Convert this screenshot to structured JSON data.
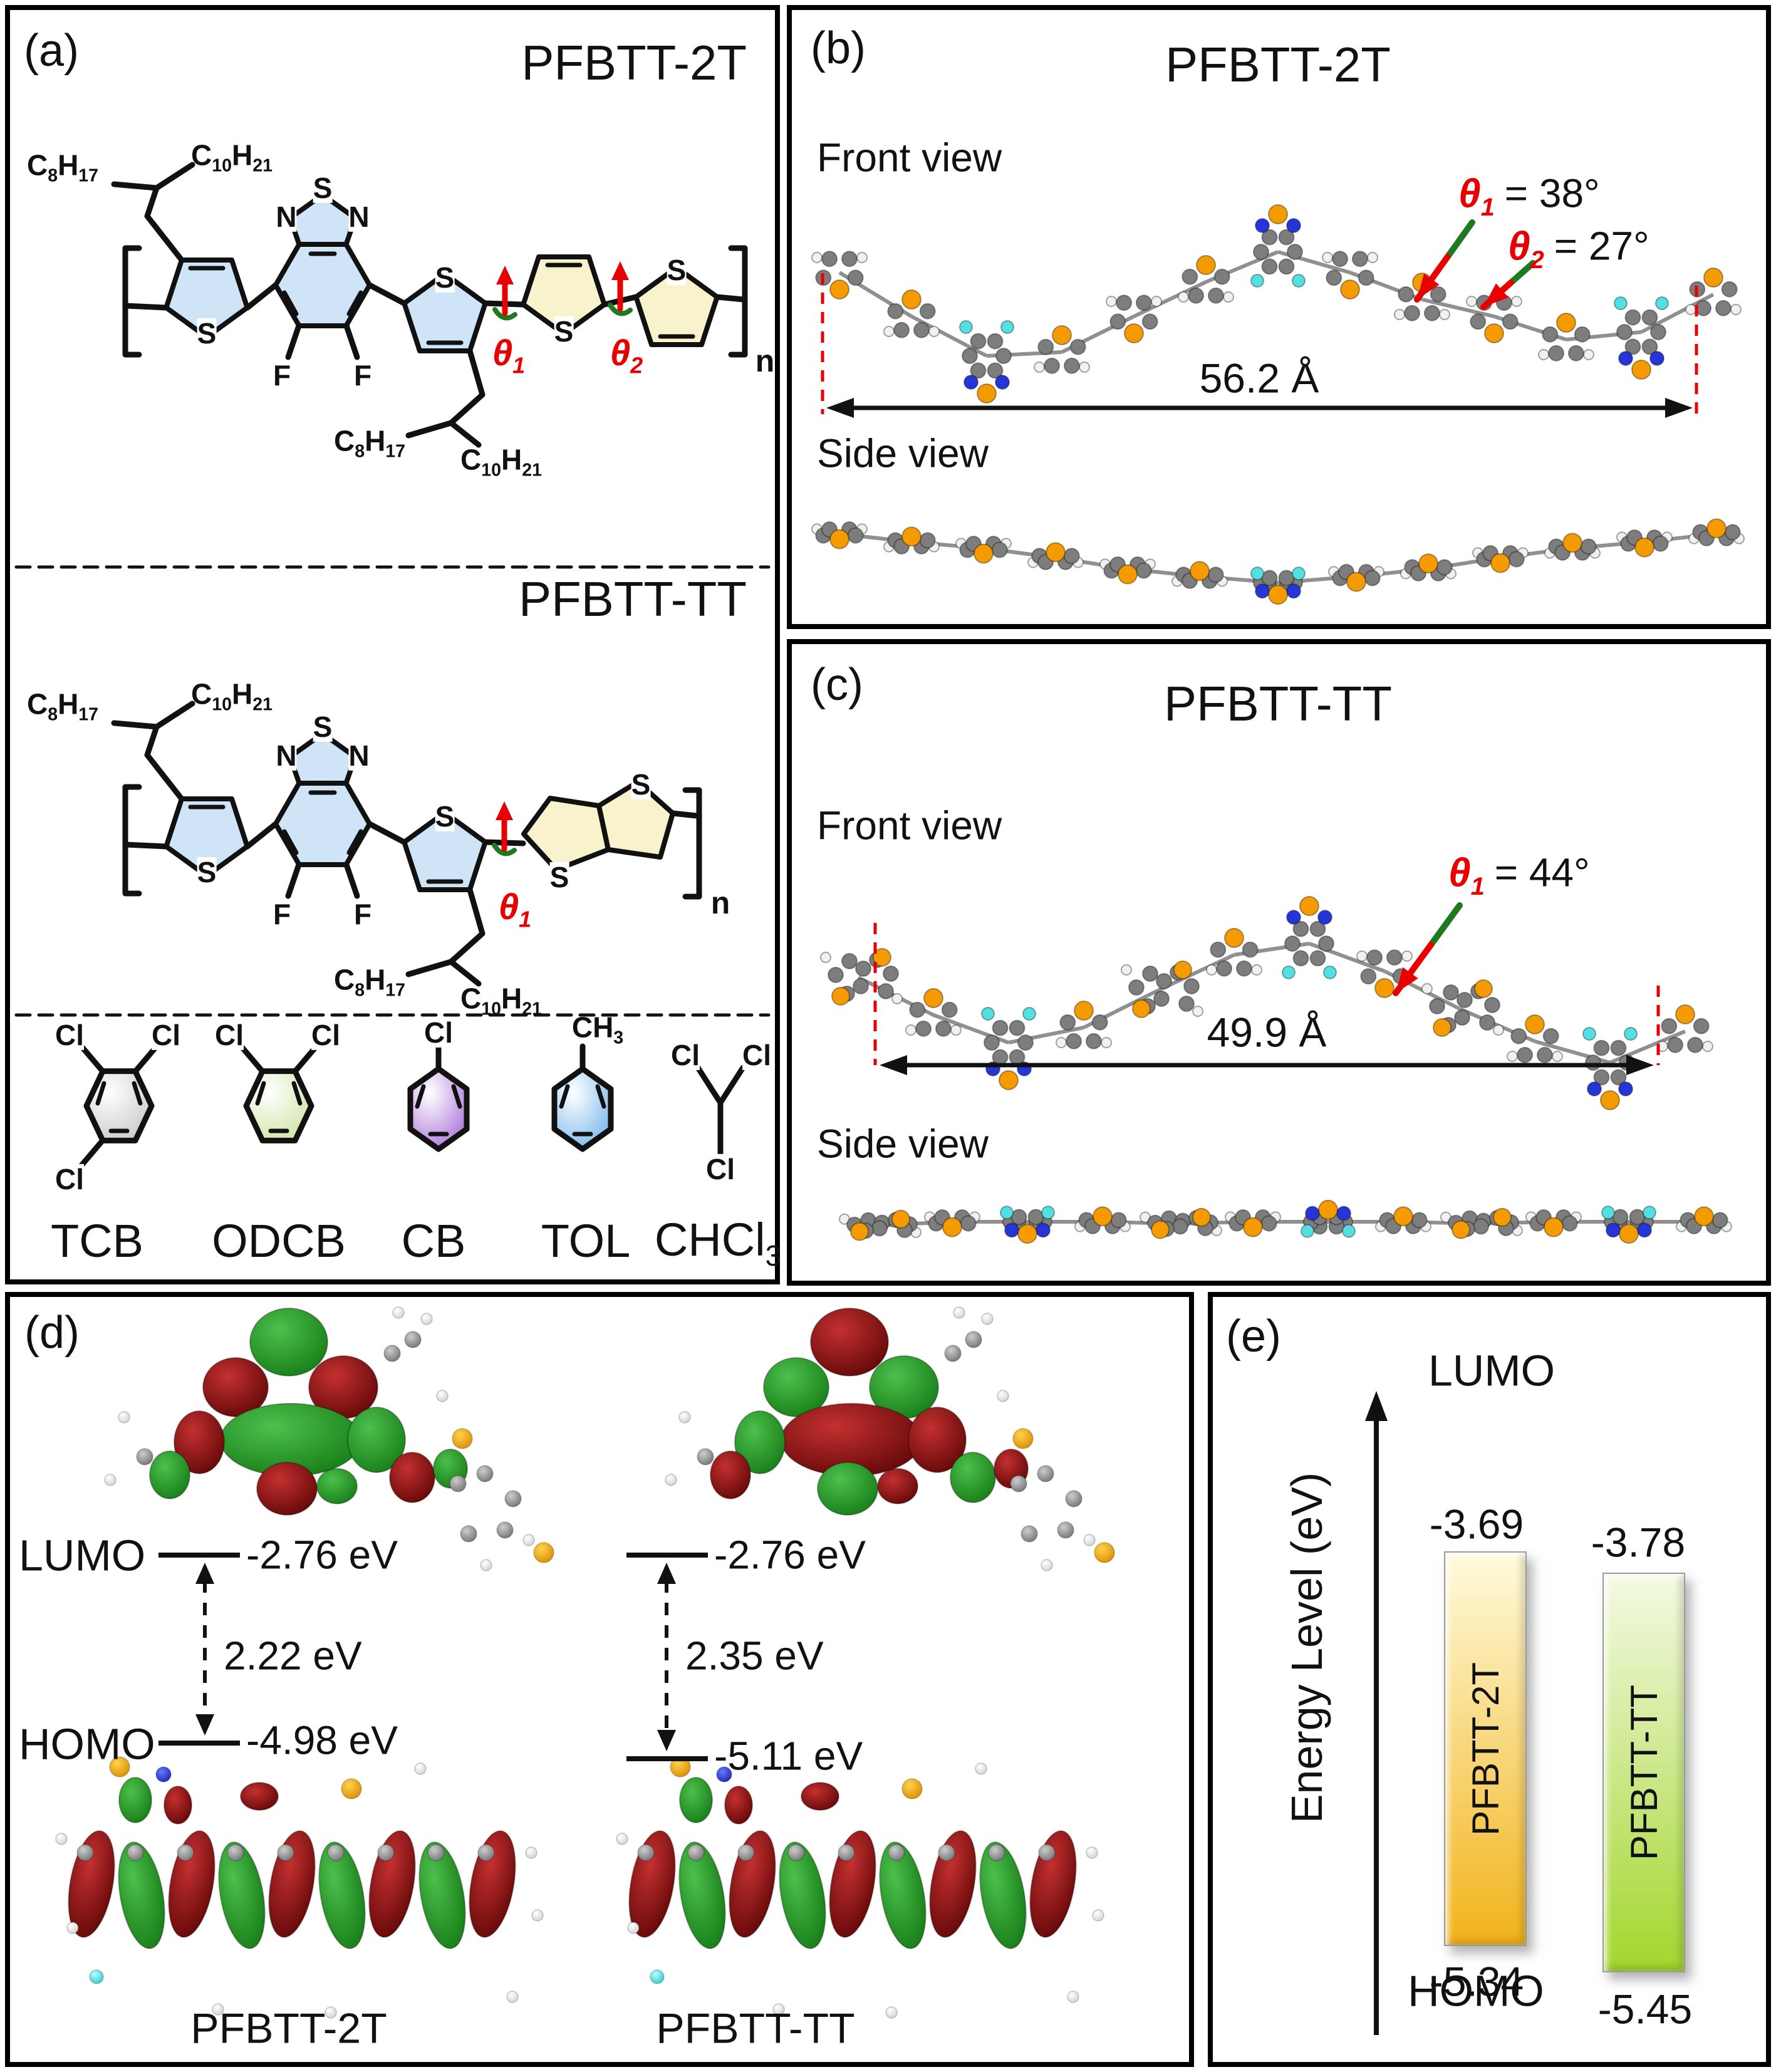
{
  "atoms": {
    "S": "S",
    "N": "N",
    "F": "F",
    "Cl": "Cl",
    "CH3": "CH3",
    "n": "n"
  },
  "side_chains": {
    "octyl": "C8H17",
    "decyl": "C10H21"
  },
  "panel_a": {
    "tag": "(a)",
    "polymer1_name": "PFBTT-2T",
    "polymer2_name": "PFBTT-TT",
    "theta1": "θ1",
    "theta2": "θ2",
    "solvents": [
      {
        "label": "TCB",
        "substituent_count": 3,
        "substituent": "Cl",
        "fill": "#c6c6c6"
      },
      {
        "label": "ODCB",
        "substituent_count": 2,
        "substituent": "Cl",
        "fill": "#cde2a0"
      },
      {
        "label": "CB",
        "substituent_count": 1,
        "substituent": "Cl",
        "fill": "#a76bd6"
      },
      {
        "label": "TOL",
        "substituent_count": 1,
        "substituent": "CH3",
        "fill": "#6fb3ea"
      },
      {
        "label": "CHCl3",
        "substituent_count": 3,
        "substituent": "Cl",
        "fill": "none"
      }
    ]
  },
  "panel_b": {
    "tag": "(b)",
    "title": "PFBTT-2T",
    "front_view": "Front view",
    "side_view": "Side view",
    "theta1_sym": "θ1",
    "theta1_val": "= 38°",
    "theta2_sym": "θ2",
    "theta2_val": "= 27°",
    "length": "56.2 Å"
  },
  "panel_c": {
    "tag": "(c)",
    "title": "PFBTT-TT",
    "front_view": "Front view",
    "side_view": "Side view",
    "theta1_sym": "θ1",
    "theta1_val": "= 44°",
    "length": "49.9 Å"
  },
  "panel_d": {
    "tag": "(d)",
    "lumo": "LUMO",
    "homo": "HOMO",
    "left": {
      "name": "PFBTT-2T",
      "lumo_ev": "-2.76 eV",
      "homo_ev": "-4.98 eV",
      "gap_ev": "2.22 eV"
    },
    "right": {
      "name": "PFBTT-TT",
      "lumo_ev": "-2.76 eV",
      "homo_ev": "-5.11 eV",
      "gap_ev": "2.35 eV"
    }
  },
  "panel_e": {
    "tag": "(e)",
    "axis_label": "Energy Level (eV)",
    "lumo": "LUMO",
    "homo": "HOMO",
    "bars": [
      {
        "name": "PFBTT-2T",
        "lumo": -3.69,
        "homo": -5.34,
        "top_color": "#FEFBDC",
        "bottom_color": "#F2B31B"
      },
      {
        "name": "PFBTT-TT",
        "lumo": -3.78,
        "homo": -5.45,
        "top_color": "#F4FAE4",
        "bottom_color": "#A3D62E"
      }
    ]
  },
  "colors": {
    "ring_blue": "#cfe4f7",
    "ring_yellow": "#f8f3cc",
    "carbon": "#7d7d7d",
    "hydrogen": "#f1f1f1",
    "sulfur": "#f59b00",
    "nitrogen": "#2635d8",
    "fluorine": "#52e0e2",
    "orbital_green": "#157a15",
    "orbital_red": "#8e0d0d",
    "theta_red": "#e80000",
    "arrow_green": "#1f7a1f",
    "dim_red": "#e80000",
    "bond": "#111111"
  }
}
